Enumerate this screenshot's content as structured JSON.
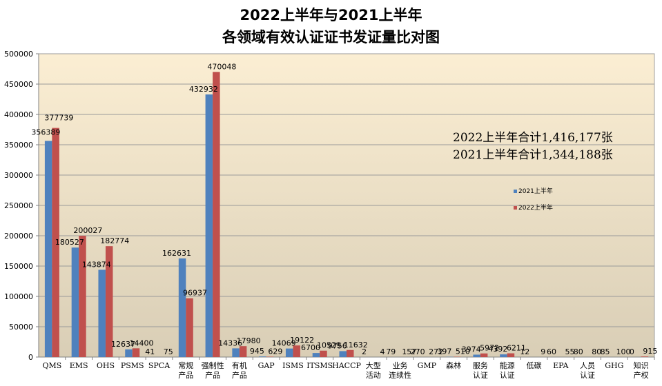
{
  "title_line1": "2022上半年与2021上半年",
  "title_line2": "各领域有效认证证书发证量比对图",
  "totals": {
    "y2022": "2022上半年合计1,416,177张",
    "y2021": "2021上半年合计1,344,188张"
  },
  "colors": {
    "s2021": "#4f81bd",
    "s2022": "#c0504d",
    "gradient_top": "#fbeed3",
    "gradient_bottom": "#d9ceb6"
  },
  "chart_data": {
    "type": "bar",
    "ylim": [
      0,
      500000
    ],
    "yticks": [
      0,
      50000,
      100000,
      150000,
      200000,
      250000,
      300000,
      350000,
      400000,
      450000,
      500000
    ],
    "grid": true,
    "legend_position": "right-middle",
    "categories": [
      [
        "QMS"
      ],
      [
        "EMS"
      ],
      [
        "OHS"
      ],
      [
        "PSMS"
      ],
      [
        "SPCA"
      ],
      [
        "常规",
        "产品"
      ],
      [
        "强制性",
        "产品"
      ],
      [
        "有机",
        "产品"
      ],
      [
        "GAP"
      ],
      [
        "ISMS"
      ],
      [
        "ITSMS"
      ],
      [
        "HACCP"
      ],
      [
        "大型",
        "活动"
      ],
      [
        "业务",
        "连续性"
      ],
      [
        "GMP"
      ],
      [
        "森林"
      ],
      [
        "服务",
        "认证"
      ],
      [
        "能源",
        "认证"
      ],
      [
        "低碳"
      ],
      [
        "EPA"
      ],
      [
        "人员",
        "认证"
      ],
      [
        "GHG"
      ],
      [
        "知识",
        "产权"
      ]
    ],
    "series": [
      {
        "name": "2021上半年",
        "values": [
          356389,
          180527,
          143874,
          12637,
          41,
          162631,
          432932,
          14336,
          945,
          14069,
          6700,
          9756,
          2,
          79,
          270,
          397,
          3974,
          4392,
          12,
          60,
          80,
          85,
          0
        ]
      },
      {
        "name": "2022上半年",
        "values": [
          377739,
          200027,
          182774,
          14400,
          75,
          96937,
          470048,
          17980,
          629,
          19122,
          10529,
          11632,
          4,
          157,
          272,
          510,
          5972,
          6211,
          9,
          55,
          80,
          100,
          915
        ]
      }
    ]
  }
}
